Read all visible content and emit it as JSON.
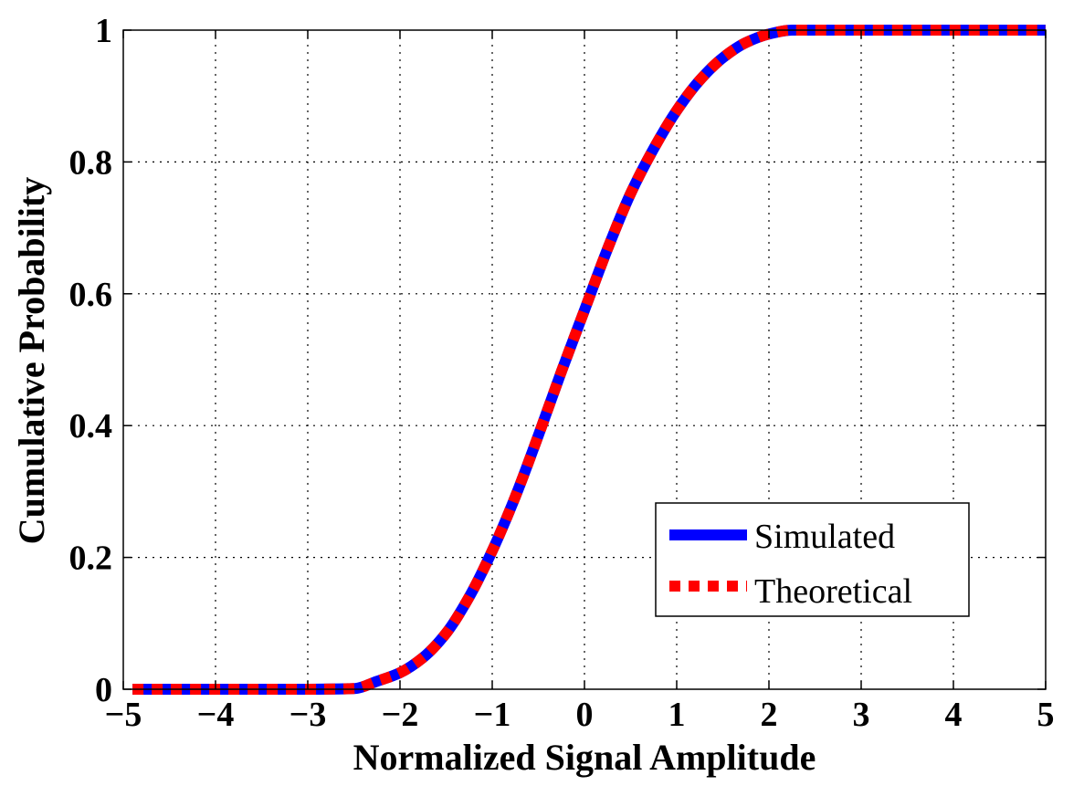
{
  "chart_data": {
    "type": "line",
    "title": "",
    "xlabel": "Normalized Signal Amplitude",
    "ylabel": "Cumulative Probability",
    "xlim": [
      -5,
      5
    ],
    "ylim": [
      0,
      1
    ],
    "grid": true,
    "legend_position": "bottom-right",
    "x_ticks": [
      -5,
      -4,
      -3,
      -2,
      -1,
      0,
      1,
      2,
      3,
      4,
      5
    ],
    "x_tick_labels": [
      "−5",
      "−4",
      "−3",
      "−2",
      "−1",
      "0",
      "1",
      "2",
      "3",
      "4",
      "5"
    ],
    "y_ticks": [
      0,
      0.2,
      0.4,
      0.6,
      0.8,
      1
    ],
    "y_tick_labels": [
      "0",
      "0.2",
      "0.4",
      "0.6",
      "0.8",
      "1"
    ],
    "x": [
      -4.9,
      -4.5,
      -4.0,
      -3.5,
      -3.0,
      -2.5,
      -2.25,
      -2.0,
      -1.75,
      -1.5,
      -1.25,
      -1.0,
      -0.75,
      -0.5,
      -0.25,
      0.0,
      0.25,
      0.5,
      0.75,
      1.0,
      1.25,
      1.5,
      1.75,
      2.0,
      2.25,
      2.5,
      3.0,
      3.5,
      4.0,
      4.5,
      4.9,
      5.0
    ],
    "series": [
      {
        "name": "Simulated",
        "color": "#0000ff",
        "style": "solid",
        "values": [
          0.0,
          0.0,
          0.0,
          0.0,
          0.0,
          0.001,
          0.012,
          0.025,
          0.048,
          0.085,
          0.14,
          0.21,
          0.292,
          0.385,
          0.482,
          0.575,
          0.668,
          0.752,
          0.82,
          0.878,
          0.924,
          0.958,
          0.981,
          0.994,
          1.0,
          1.0,
          1.0,
          1.0,
          1.0,
          1.0,
          1.0,
          1.0
        ]
      },
      {
        "name": "Theoretical",
        "color": "#ff0000",
        "style": "dashed",
        "values": [
          0.0,
          0.0,
          0.0,
          0.0,
          0.0,
          0.001,
          0.012,
          0.025,
          0.048,
          0.085,
          0.14,
          0.21,
          0.292,
          0.385,
          0.482,
          0.575,
          0.668,
          0.752,
          0.82,
          0.878,
          0.924,
          0.958,
          0.981,
          0.994,
          1.0,
          1.0,
          1.0,
          1.0,
          1.0,
          1.0,
          1.0,
          1.0
        ]
      }
    ]
  }
}
